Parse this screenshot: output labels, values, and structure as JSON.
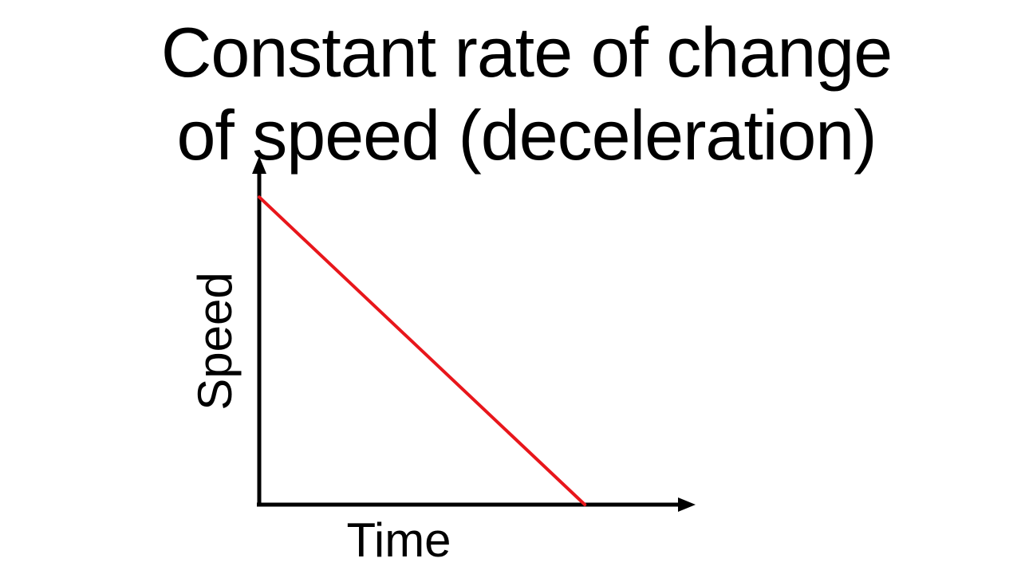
{
  "slide": {
    "title_line1": "Constant rate of change",
    "title_line2": "of speed (deceleration)"
  },
  "chart_data": {
    "type": "line",
    "title": "Constant rate of change of speed (deceleration)",
    "xlabel": "Time",
    "ylabel": "Speed",
    "x": [
      0,
      1
    ],
    "series": [
      {
        "values": [
          1,
          0
        ],
        "color": "#e8161b"
      }
    ],
    "xlim": [
      0,
      1.34
    ],
    "ylim": [
      0,
      1.06
    ],
    "grid": false,
    "axis_color": "#000000"
  }
}
